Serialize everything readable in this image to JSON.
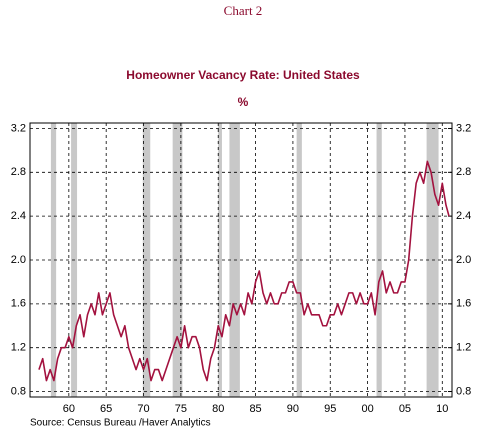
{
  "chart_data": {
    "type": "line",
    "caption": "Chart 2",
    "title": "Homeowner Vacancy Rate: United States",
    "subtitle": "%",
    "source": "Source:  Census Bureau /Haver Analytics",
    "xlim": [
      1954.8,
      2011.3
    ],
    "xticks": [
      {
        "value": 1960,
        "label": "60"
      },
      {
        "value": 1965,
        "label": "65"
      },
      {
        "value": 1970,
        "label": "70"
      },
      {
        "value": 1975,
        "label": "75"
      },
      {
        "value": 1980,
        "label": "80"
      },
      {
        "value": 1985,
        "label": "85"
      },
      {
        "value": 1990,
        "label": "90"
      },
      {
        "value": 1995,
        "label": "95"
      },
      {
        "value": 2000,
        "label": "00"
      },
      {
        "value": 2005,
        "label": "05"
      },
      {
        "value": 2010,
        "label": "10"
      }
    ],
    "ylim": [
      0.75,
      3.25
    ],
    "yticks": [
      0.8,
      1.2,
      1.6,
      {
        "value": 2,
        "label": "2.0"
      },
      2.4,
      2.8,
      3.2
    ],
    "y2lim": [
      0.75,
      3.25
    ],
    "y2ticks": [
      0.8,
      1.2,
      1.6,
      {
        "value": 2,
        "label": "2.0"
      },
      2.4,
      2.8,
      3.2
    ],
    "grid": true,
    "recession_color": "#c8c8c8",
    "recessions": [
      [
        1957.6,
        1958.3
      ],
      [
        1960.3,
        1961.1
      ],
      [
        1969.9,
        1970.9
      ],
      [
        1973.9,
        1975.2
      ],
      [
        1980.0,
        1980.5
      ],
      [
        1981.5,
        1982.9
      ],
      [
        1990.5,
        1991.2
      ],
      [
        2001.2,
        2001.9
      ],
      [
        2007.9,
        2009.5
      ]
    ],
    "series": [
      {
        "name": "Homeowner Vacancy Rate",
        "color": "#a3123f",
        "x": [
          1956,
          1956.5,
          1957,
          1957.5,
          1958,
          1958.5,
          1959,
          1959.5,
          1960,
          1960.5,
          1961,
          1961.5,
          1962,
          1962.5,
          1963,
          1963.5,
          1964,
          1964.5,
          1965,
          1965.5,
          1966,
          1966.5,
          1967,
          1967.5,
          1968,
          1968.5,
          1969,
          1969.5,
          1970,
          1970.5,
          1971,
          1971.5,
          1972,
          1972.5,
          1973,
          1973.5,
          1974,
          1974.5,
          1975,
          1975.5,
          1976,
          1976.5,
          1977,
          1977.5,
          1978,
          1978.5,
          1979,
          1979.5,
          1980,
          1980.5,
          1981,
          1981.5,
          1982,
          1982.5,
          1983,
          1983.5,
          1984,
          1984.5,
          1985,
          1985.5,
          1986,
          1986.5,
          1987,
          1987.5,
          1988,
          1988.5,
          1989,
          1989.5,
          1990,
          1990.5,
          1991,
          1991.5,
          1992,
          1992.5,
          1993,
          1993.5,
          1994,
          1994.5,
          1995,
          1995.5,
          1996,
          1996.5,
          1997,
          1997.5,
          1998,
          1998.5,
          1999,
          1999.5,
          2000,
          2000.5,
          2001,
          2001.5,
          2002,
          2002.5,
          2003,
          2003.5,
          2004,
          2004.5,
          2005,
          2005.5,
          2006,
          2006.5,
          2007,
          2007.5,
          2008,
          2008.5,
          2009,
          2009.5,
          2010,
          2010.5,
          2010.9
        ],
        "values": [
          1.0,
          1.1,
          0.9,
          1.0,
          0.9,
          1.1,
          1.2,
          1.2,
          1.3,
          1.2,
          1.4,
          1.5,
          1.3,
          1.5,
          1.6,
          1.5,
          1.7,
          1.5,
          1.6,
          1.7,
          1.5,
          1.4,
          1.3,
          1.4,
          1.2,
          1.1,
          1.0,
          1.1,
          1.0,
          1.1,
          0.9,
          1.0,
          1.0,
          0.9,
          1.0,
          1.1,
          1.2,
          1.3,
          1.2,
          1.4,
          1.2,
          1.3,
          1.3,
          1.2,
          1.0,
          0.9,
          1.1,
          1.2,
          1.4,
          1.3,
          1.5,
          1.4,
          1.6,
          1.5,
          1.6,
          1.5,
          1.7,
          1.6,
          1.8,
          1.9,
          1.7,
          1.6,
          1.7,
          1.6,
          1.6,
          1.7,
          1.7,
          1.8,
          1.8,
          1.7,
          1.7,
          1.5,
          1.6,
          1.5,
          1.5,
          1.5,
          1.4,
          1.4,
          1.5,
          1.5,
          1.6,
          1.5,
          1.6,
          1.7,
          1.7,
          1.6,
          1.7,
          1.6,
          1.6,
          1.7,
          1.5,
          1.8,
          1.9,
          1.7,
          1.8,
          1.7,
          1.7,
          1.8,
          1.8,
          2.0,
          2.4,
          2.7,
          2.8,
          2.7,
          2.9,
          2.8,
          2.6,
          2.5,
          2.7,
          2.5,
          2.4
        ]
      }
    ]
  }
}
